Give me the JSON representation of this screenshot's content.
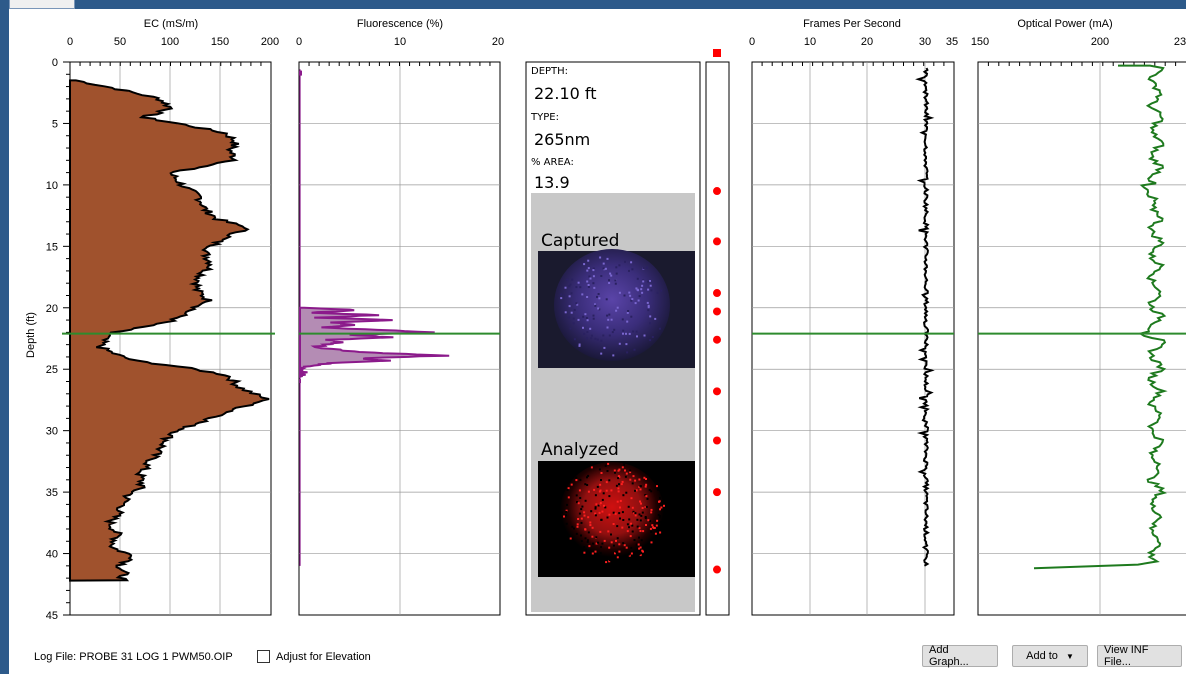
{
  "depth_axis": {
    "label": "Depth (ft)",
    "ticks": [
      "0",
      "5",
      "10",
      "15",
      "20",
      "25",
      "30",
      "35",
      "40",
      "45"
    ]
  },
  "ec_panel": {
    "title": "EC (mS/m)",
    "ticks": [
      "0",
      "50",
      "100",
      "150",
      "200"
    ],
    "fill_color": "#a0522d"
  },
  "fluorescence_panel": {
    "title": "Fluorescence (%)",
    "ticks": [
      "0",
      "10",
      "20"
    ],
    "color": "#8b1a8b"
  },
  "info_panel": {
    "depth_label": "DEPTH:",
    "depth_value": "22.10 ft",
    "type_label": "TYPE:",
    "type_value": "265nm",
    "area_label": "% AREA:",
    "area_value": "13.9",
    "captured_label": "Captured",
    "analyzed_label": "Analyzed"
  },
  "image_markers": {
    "marker_color": "#ff0000",
    "depths_ft": [
      10.5,
      14.6,
      18.8,
      20.3,
      22.6,
      26.8,
      30.8,
      35.0,
      41.3
    ]
  },
  "fps_panel": {
    "title": "Frames Per Second",
    "ticks": [
      "0",
      "10",
      "20",
      "30",
      "35"
    ]
  },
  "optical_panel": {
    "title": "Optical Power (mA)",
    "ticks": [
      "150",
      "200",
      "23"
    ],
    "color": "#1e7a1e"
  },
  "cursor": {
    "depth_ft": 22.1,
    "color": "#2e8b2e"
  },
  "footer": {
    "log_file": "Log File: PROBE 31 LOG 1 PWM50.OIP",
    "adjust_label": "Adjust for Elevation",
    "add_graph_button": "Add Graph...",
    "add_to_button": "Add to",
    "view_inf_button": "View INF File..."
  }
}
